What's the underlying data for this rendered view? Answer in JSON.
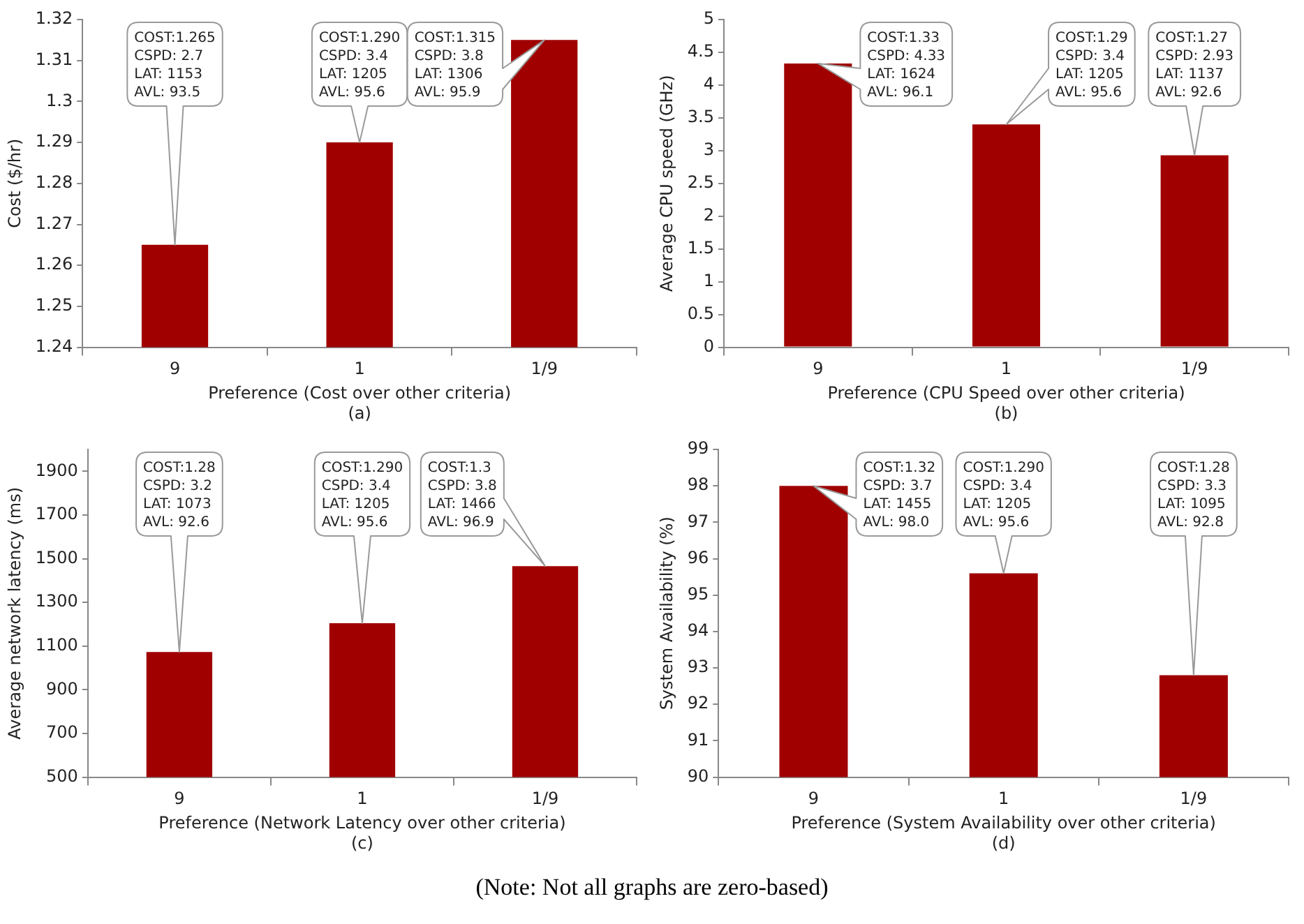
{
  "chart_data": [
    {
      "type": "bar",
      "xlabel": "Preference (Cost over other criteria)",
      "ylabel": "Cost ($/hr)",
      "categories": [
        "9",
        "1",
        "1/9"
      ],
      "values": [
        1.265,
        1.29,
        1.315
      ],
      "color": "#a00000",
      "ylim": [
        1.24,
        1.32
      ],
      "yticks": [
        1.24,
        1.25,
        1.26,
        1.27,
        1.28,
        1.29,
        1.3,
        1.31,
        1.32
      ],
      "grid": false,
      "legend": false,
      "annotations": [
        "(a)",
        "COST:1.265\nCSPD: 2.7\nLAT: 1153\nAVL: 93.5",
        "COST:1.290\nCSPD: 3.4\nLAT: 1205\nAVL: 95.6",
        "COST:1.315\nCSPD: 3.8\nLAT: 1306\nAVL: 95.9"
      ]
    },
    {
      "type": "bar",
      "xlabel": "Preference (CPU Speed over other criteria)",
      "ylabel": "Average CPU speed (GHz)",
      "categories": [
        "9",
        "1",
        "1/9"
      ],
      "values": [
        4.33,
        3.4,
        2.93
      ],
      "color": "#a00000",
      "ylim": [
        0,
        5
      ],
      "yticks": [
        0,
        0.5,
        1,
        1.5,
        2,
        2.5,
        3,
        3.5,
        4,
        4.5,
        5
      ],
      "grid": false,
      "legend": false,
      "annotations": [
        "(b)",
        "COST:1.33\nCSPD: 4.33\nLAT: 1624\nAVL: 96.1",
        "COST:1.29\nCSPD: 3.4\nLAT: 1205\nAVL: 95.6",
        "COST:1.27\nCSPD: 2.93\nLAT: 1137\nAVL: 92.6"
      ]
    },
    {
      "type": "bar",
      "xlabel": "Preference (Network Latency over other criteria)",
      "ylabel": "Average network latency (ms)",
      "categories": [
        "9",
        "1",
        "1/9"
      ],
      "values": [
        1073,
        1205,
        1466
      ],
      "color": "#a00000",
      "ylim": [
        500,
        2000
      ],
      "yticks": [
        500,
        700,
        900,
        1100,
        1300,
        1500,
        1700,
        1900
      ],
      "grid": false,
      "legend": false,
      "annotations": [
        "(c)",
        "COST:1.28\nCSPD: 3.2\nLAT: 1073\nAVL: 92.6",
        "COST:1.290\nCSPD: 3.4\nLAT: 1205\nAVL: 95.6",
        "COST:1.3\nCSPD: 3.8\nLAT: 1466\nAVL: 96.9"
      ]
    },
    {
      "type": "bar",
      "xlabel": "Preference (System Availability over other criteria)",
      "ylabel": "System Availability (%)",
      "categories": [
        "9",
        "1",
        "1/9"
      ],
      "values": [
        98.0,
        95.6,
        92.8
      ],
      "color": "#a00000",
      "ylim": [
        90,
        99
      ],
      "yticks": [
        90,
        91,
        92,
        93,
        94,
        95,
        96,
        97,
        98,
        99
      ],
      "grid": false,
      "legend": false,
      "annotations": [
        "(d)",
        "COST:1.32\nCSPD: 3.7\nLAT: 1455\nAVL: 98.0",
        "COST:1.290\nCSPD: 3.4\nLAT: 1205\nAVL: 95.6",
        "COST:1.28\nCSPD: 3.3\nLAT: 1095\nAVL: 92.8",
        "(Note: Not all graphs are zero-based)"
      ]
    }
  ]
}
